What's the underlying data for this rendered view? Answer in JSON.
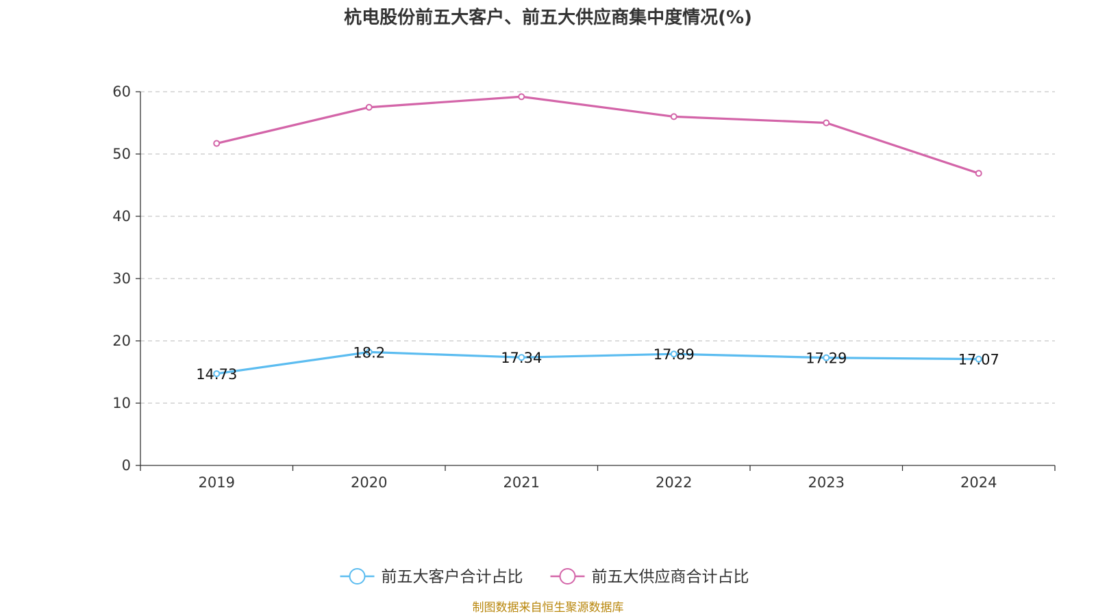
{
  "chart_data": {
    "type": "line",
    "title": "杭电股份前五大客户、前五大供应商集中度情况(%)",
    "categories": [
      "2019",
      "2020",
      "2021",
      "2022",
      "2023",
      "2024"
    ],
    "ylim": [
      0,
      60
    ],
    "yticks": [
      "0",
      "10",
      "20",
      "30",
      "40",
      "50",
      "60"
    ],
    "grid": true,
    "legend_position": "bottom",
    "series": [
      {
        "name": "前五大客户合计占比",
        "color": "#5bbcf0",
        "values": [
          14.73,
          18.2,
          17.34,
          17.89,
          17.29,
          17.07
        ],
        "labels": [
          "14.73",
          "18.2",
          "17.34",
          "17.89",
          "17.29",
          "17.07"
        ]
      },
      {
        "name": "前五大供应商合计占比",
        "color": "#d364a8",
        "values": [
          51.7,
          57.5,
          59.2,
          56.0,
          55.0,
          46.9
        ],
        "labels": []
      }
    ]
  },
  "source_note": "制图数据来自恒生聚源数据库"
}
